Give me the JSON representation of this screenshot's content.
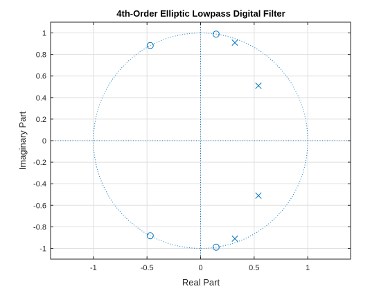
{
  "chart_data": {
    "type": "scatter",
    "title": "4th-Order Elliptic Lowpass Digital Filter",
    "xlabel": "Real Part",
    "ylabel": "Imaginary Part",
    "xlim": [
      -1.4,
      1.4
    ],
    "ylim": [
      -1.1,
      1.1
    ],
    "xticks": [
      -1,
      -0.5,
      0,
      0.5,
      1
    ],
    "xtick_labels": [
      "-1",
      "-0.5",
      "0",
      "0.5",
      "1"
    ],
    "yticks": [
      -1,
      -0.8,
      -0.6,
      -0.4,
      -0.2,
      0,
      0.2,
      0.4,
      0.6,
      0.8,
      1
    ],
    "ytick_labels": [
      "-1",
      "-0.8",
      "-0.6",
      "-0.4",
      "-0.2",
      "0",
      "0.2",
      "0.4",
      "0.6",
      "0.8",
      "1"
    ],
    "grid": true,
    "unit_circle": true,
    "colors": {
      "marker": "#0072BD",
      "grid": "#dfdfdf",
      "axes": "#262626"
    },
    "series": [
      {
        "marker": "o",
        "points": [
          {
            "x": 0.145,
            "y": 0.989
          },
          {
            "x": 0.145,
            "y": -0.989
          },
          {
            "x": -0.47,
            "y": 0.883
          },
          {
            "x": -0.47,
            "y": -0.883
          }
        ]
      },
      {
        "marker": "x",
        "points": [
          {
            "x": 0.32,
            "y": 0.91
          },
          {
            "x": 0.32,
            "y": -0.91
          },
          {
            "x": 0.54,
            "y": 0.51
          },
          {
            "x": 0.54,
            "y": -0.51
          }
        ]
      }
    ]
  }
}
